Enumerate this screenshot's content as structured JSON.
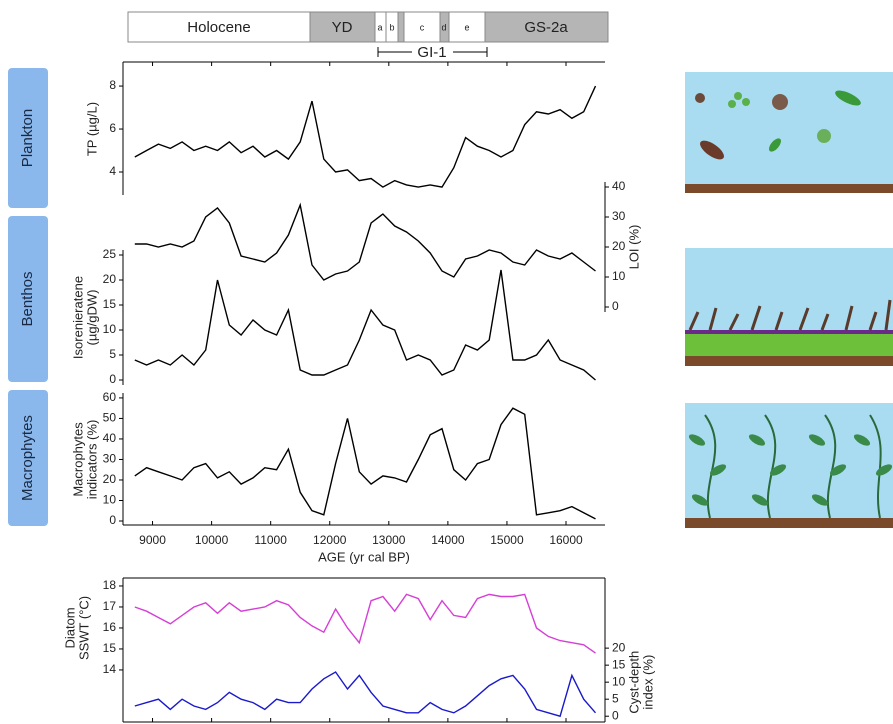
{
  "header": {
    "stages": [
      "Holocene",
      "YD",
      "a",
      "b",
      "c",
      "d",
      "e",
      "GS-2a"
    ],
    "interstadial": "GI-1"
  },
  "panel_labels": [
    "Plankton",
    "Benthos",
    "Macrophytes"
  ],
  "chart_data": [
    {
      "type": "line",
      "x": [
        8700,
        8900,
        9100,
        9300,
        9500,
        9700,
        9900,
        10100,
        10300,
        10500,
        10700,
        10900,
        11100,
        11300,
        11500,
        11700,
        11900,
        12100,
        12300,
        12500,
        12700,
        12900,
        13100,
        13300,
        13500,
        13700,
        13900,
        14100,
        14300,
        14500,
        14700,
        14900,
        15100,
        15300,
        15500,
        15700,
        15900,
        16100,
        16300,
        16500
      ],
      "xlim": [
        8500,
        16660
      ],
      "xticks": [
        9000,
        10000,
        11000,
        12000,
        13000,
        14000,
        15000,
        16000
      ],
      "ylim": [
        2.93,
        9.12
      ],
      "yticks": [
        4,
        6,
        8
      ],
      "y_label": [
        "TP (µg/L)"
      ],
      "series": [
        {
          "color": "#000000",
          "values": [
            4.7,
            5.0,
            5.3,
            5.1,
            5.4,
            5.0,
            5.2,
            5.0,
            5.4,
            4.9,
            5.2,
            4.7,
            5.0,
            4.6,
            5.4,
            7.3,
            4.6,
            4.0,
            4.1,
            3.6,
            3.7,
            3.3,
            3.6,
            3.4,
            3.3,
            3.4,
            3.3,
            4.2,
            5.6,
            5.2,
            5.0,
            4.7,
            5.0,
            6.2,
            6.8,
            6.7,
            6.9,
            6.5,
            6.8,
            8.0
          ]
        }
      ]
    },
    {
      "type": "line",
      "x": [
        8700,
        8900,
        9100,
        9300,
        9500,
        9700,
        9900,
        10100,
        10300,
        10500,
        10700,
        10900,
        11100,
        11300,
        11500,
        11700,
        11900,
        12100,
        12300,
        12500,
        12700,
        12900,
        13100,
        13300,
        13500,
        13700,
        13900,
        14100,
        14300,
        14500,
        14700,
        14900,
        15100,
        15300,
        15500,
        15700,
        15900,
        16100,
        16300,
        16500
      ],
      "xlim": [
        8500,
        16660
      ],
      "ylim": [
        -1,
        40.4
      ],
      "yticks": [
        0,
        5,
        10,
        15,
        20,
        25
      ],
      "y_label": [
        "Isorenieratene",
        "(µg/gDW)"
      ],
      "y2lim": [
        -26,
        43
      ],
      "y2ticks": [
        0,
        10,
        20,
        30,
        40
      ],
      "y2_label": [
        "LOI (%)"
      ],
      "series": [
        {
          "color": "#000000",
          "values": [
            4,
            3,
            4,
            3,
            5,
            3,
            6,
            20,
            11,
            9,
            12,
            10,
            9,
            14,
            2,
            1,
            1,
            2,
            3,
            8,
            14,
            11,
            10,
            4,
            5,
            4,
            1,
            2,
            7,
            6,
            8,
            22,
            4,
            4,
            5,
            8,
            4,
            3,
            2,
            0
          ]
        },
        {
          "color": "#000000",
          "axis": "y2",
          "values": [
            21,
            21,
            20,
            21,
            20,
            22,
            30,
            33,
            28,
            17,
            16,
            15,
            18,
            24,
            34,
            14,
            9,
            11,
            12,
            15,
            28,
            31,
            27,
            25,
            22,
            18,
            12,
            10,
            16,
            17,
            19,
            18,
            15,
            14,
            19,
            17,
            16,
            18,
            15,
            12
          ]
        }
      ]
    },
    {
      "type": "line",
      "x": [
        8700,
        8900,
        9100,
        9300,
        9500,
        9700,
        9900,
        10100,
        10300,
        10500,
        10700,
        10900,
        11100,
        11300,
        11500,
        11700,
        11900,
        12100,
        12300,
        12500,
        12700,
        12900,
        13100,
        13300,
        13500,
        13700,
        13900,
        14100,
        14300,
        14500,
        14700,
        14900,
        15100,
        15300,
        15500,
        15700,
        15900,
        16100,
        16300,
        16500
      ],
      "xlim": [
        8500,
        16660
      ],
      "xticks": [
        9000,
        10000,
        11000,
        12000,
        13000,
        14000,
        15000,
        16000
      ],
      "xtick_labels": true,
      "x_label": "AGE (yr cal BP)",
      "ylim": [
        -1.95,
        62.4
      ],
      "yticks": [
        0,
        10,
        20,
        30,
        40,
        50,
        60
      ],
      "y_label": [
        "Macrophytes",
        "indicators (%)"
      ],
      "series": [
        {
          "color": "#000000",
          "values": [
            22,
            26,
            24,
            22,
            20,
            26,
            28,
            21,
            24,
            18,
            21,
            26,
            25,
            35,
            14,
            5,
            3,
            28,
            50,
            24,
            18,
            22,
            21,
            19,
            30,
            42,
            45,
            25,
            20,
            28,
            30,
            47,
            55,
            52,
            3,
            4,
            5,
            7,
            4,
            1
          ]
        }
      ]
    },
    {
      "type": "line",
      "x": [
        8700,
        8900,
        9100,
        9300,
        9500,
        9700,
        9900,
        10100,
        10300,
        10500,
        10700,
        10900,
        11100,
        11300,
        11500,
        11700,
        11900,
        12100,
        12300,
        12500,
        12700,
        12900,
        13100,
        13300,
        13500,
        13700,
        13900,
        14100,
        14300,
        14500,
        14700,
        14900,
        15100,
        15300,
        15500,
        15700,
        15900,
        16100,
        16300,
        16500
      ],
      "xlim": [
        8500,
        16660
      ],
      "xticks": [
        9000,
        10000,
        11000,
        12000,
        13000,
        14000,
        15000,
        16000
      ],
      "ylim": [
        11.52,
        18.38
      ],
      "yticks": [
        14,
        15,
        16,
        17,
        18
      ],
      "y_label": [
        "Diatom",
        "SSWT (°C)"
      ],
      "y2lim": [
        -1.7,
        40.6
      ],
      "y2ticks": [
        0,
        5,
        10,
        15,
        20
      ],
      "y2_label": [
        "Cyst-depth",
        "index (%)"
      ],
      "series": [
        {
          "color": "#d63fd6",
          "values": [
            17.0,
            16.8,
            16.5,
            16.2,
            16.6,
            17.0,
            17.2,
            16.7,
            17.2,
            16.8,
            16.9,
            17.0,
            17.3,
            17.1,
            16.5,
            16.1,
            15.8,
            16.9,
            16.0,
            15.3,
            17.3,
            17.5,
            16.8,
            17.6,
            17.4,
            16.4,
            17.3,
            16.6,
            16.5,
            17.4,
            17.6,
            17.5,
            17.5,
            17.6,
            16.0,
            15.6,
            15.4,
            15.3,
            15.2,
            14.8
          ]
        },
        {
          "color": "#1a1acc",
          "axis": "y2",
          "values": [
            3,
            4,
            5,
            2,
            5,
            3,
            2,
            4,
            7,
            5,
            4,
            2,
            5,
            4,
            4,
            8,
            11,
            13,
            8,
            12,
            7,
            3,
            2,
            1,
            1,
            4,
            2,
            1,
            3,
            6,
            9,
            11,
            12,
            8,
            2,
            1,
            0,
            12,
            5,
            1
          ]
        }
      ]
    }
  ]
}
